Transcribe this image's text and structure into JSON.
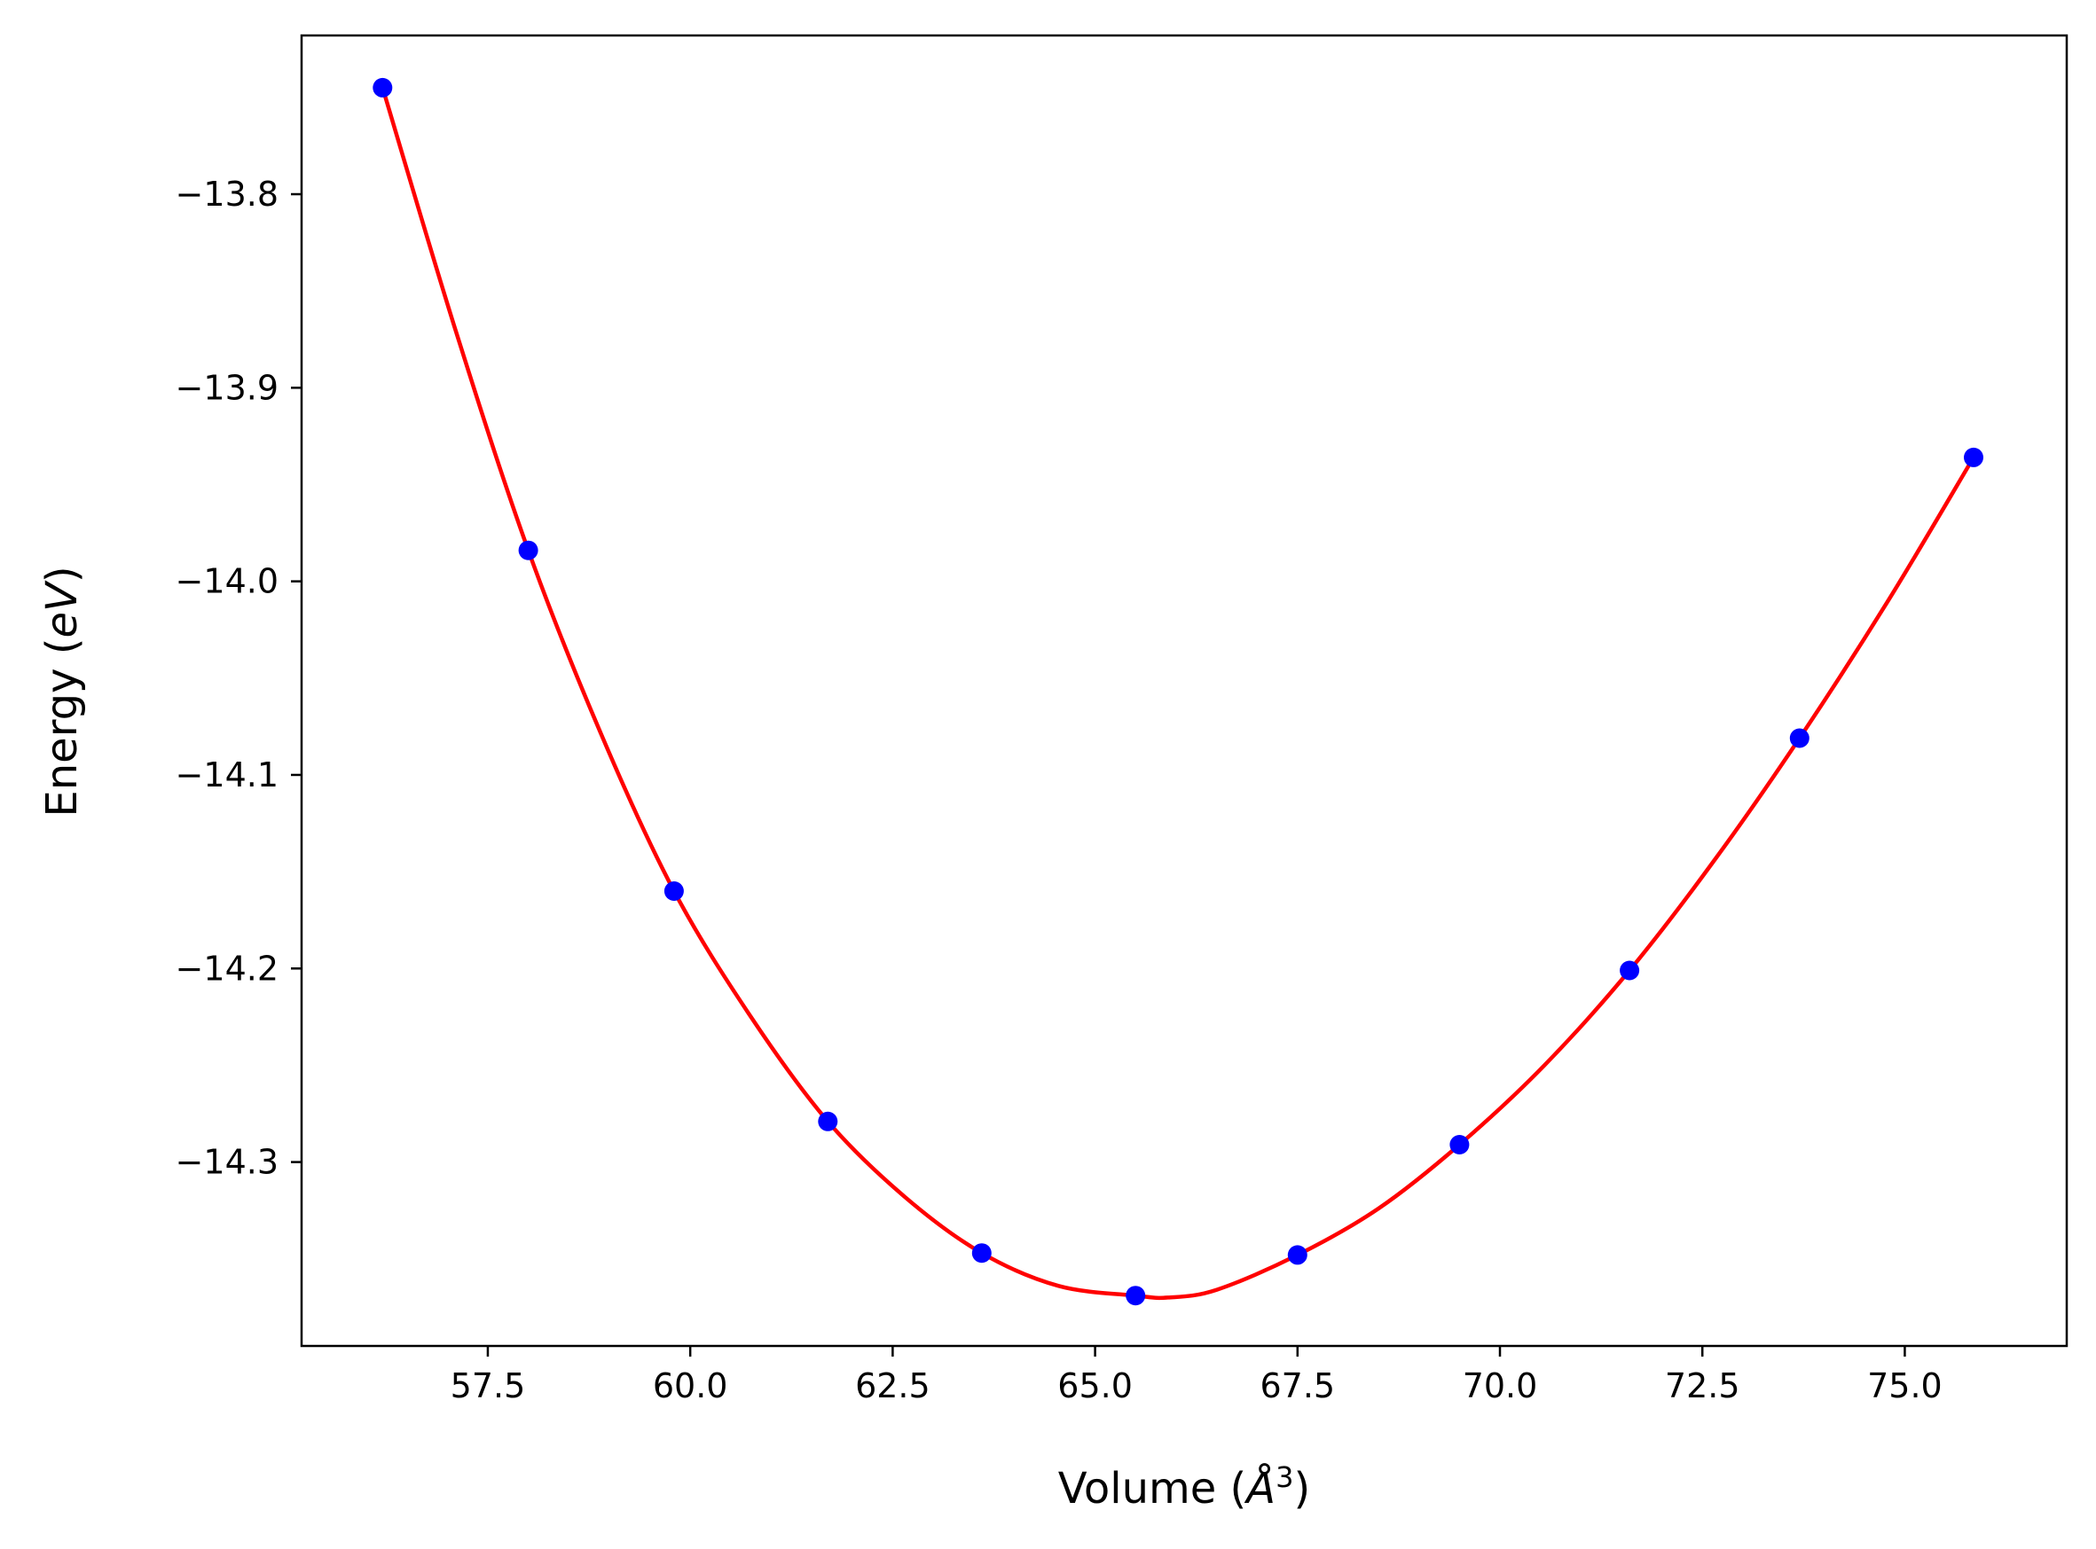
{
  "chart_data": {
    "type": "scatter",
    "title": "",
    "xlabel": "Volume (",
    "xlabel_math": "Å",
    "xlabel_sup": "3",
    "xlabel_close": ")",
    "ylabel": "Energy (",
    "ylabel_math": "eV",
    "ylabel_close": ")",
    "xlim": [
      55.2,
      77.0
    ],
    "ylim": [
      -14.395,
      -13.718
    ],
    "xticks": [
      57.5,
      60.0,
      62.5,
      65.0,
      67.5,
      70.0,
      72.5,
      75.0
    ],
    "xtick_labels": [
      "57.5",
      "60.0",
      "62.5",
      "65.0",
      "67.5",
      "70.0",
      "72.5",
      "75.0"
    ],
    "yticks": [
      -13.8,
      -13.9,
      -14.0,
      -14.1,
      -14.2,
      -14.3
    ],
    "ytick_labels": [
      "−13.8",
      "−13.9",
      "−14.0",
      "−14.1",
      "−14.2",
      "−14.3"
    ],
    "grid": false,
    "colors": {
      "points": "#0000ff",
      "fit": "#ff0000",
      "axes": "#000000"
    },
    "series": [
      {
        "kind": "points",
        "x": [
          56.2,
          58.0,
          59.8,
          61.7,
          63.6,
          65.5,
          67.5,
          69.5,
          71.6,
          73.7,
          75.85
        ],
        "y": [
          -13.745,
          -13.984,
          -14.16,
          -14.279,
          -14.347,
          -14.369,
          -14.348,
          -14.291,
          -14.201,
          -14.081,
          -13.936
        ]
      },
      {
        "kind": "fit-line",
        "x": [
          56.2,
          57.1,
          58.0,
          58.9,
          59.8,
          60.75,
          61.7,
          62.65,
          63.6,
          64.55,
          65.5,
          65.9,
          66.5,
          67.5,
          68.5,
          69.5,
          70.55,
          71.6,
          72.65,
          73.7,
          74.78,
          75.85
        ],
        "y": [
          -13.745,
          -13.87,
          -13.984,
          -14.079,
          -14.16,
          -14.225,
          -14.279,
          -14.318,
          -14.347,
          -14.364,
          -14.369,
          -14.37,
          -14.366,
          -14.348,
          -14.324,
          -14.291,
          -14.25,
          -14.201,
          -14.144,
          -14.081,
          -14.011,
          -13.936
        ]
      }
    ]
  }
}
